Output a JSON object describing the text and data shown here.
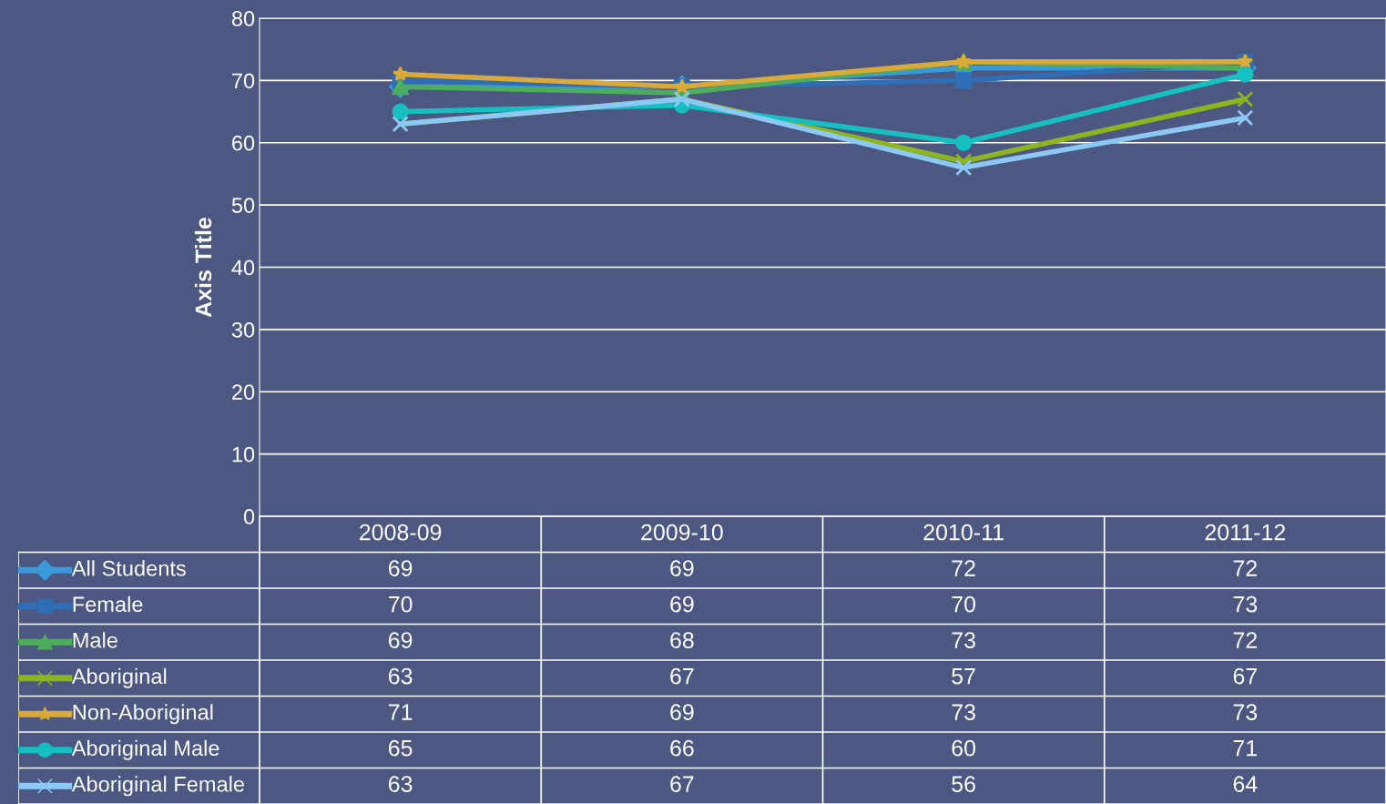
{
  "chart_data": {
    "type": "line",
    "ylabel": "Axis Title",
    "categories": [
      "2008-09",
      "2009-10",
      "2010-11",
      "2011-12"
    ],
    "series": [
      {
        "name": "All Students",
        "color": "#3a9ad9",
        "marker": "diamond",
        "values": [
          69,
          69,
          72,
          72
        ]
      },
      {
        "name": "Female",
        "color": "#2f6db5",
        "marker": "square",
        "values": [
          70,
          69,
          70,
          73
        ]
      },
      {
        "name": "Male",
        "color": "#4cae5c",
        "marker": "triangle",
        "values": [
          69,
          68,
          73,
          72
        ]
      },
      {
        "name": "Aboriginal",
        "color": "#8db520",
        "marker": "cross",
        "values": [
          63,
          67,
          57,
          67
        ]
      },
      {
        "name": "Non-Aboriginal",
        "color": "#d9a93a",
        "marker": "star",
        "values": [
          71,
          69,
          73,
          73
        ]
      },
      {
        "name": "Aboriginal Male",
        "color": "#17c0c0",
        "marker": "circle",
        "values": [
          65,
          66,
          60,
          71
        ]
      },
      {
        "name": "Aboriginal Female",
        "color": "#8cc8f5",
        "marker": "cross",
        "values": [
          63,
          67,
          56,
          64
        ]
      }
    ],
    "ylim": [
      0,
      80
    ],
    "yticks": [
      0,
      10,
      20,
      30,
      40,
      50,
      60,
      70,
      80
    ],
    "grid": "y",
    "legend": "bottom",
    "data_labels": true
  }
}
